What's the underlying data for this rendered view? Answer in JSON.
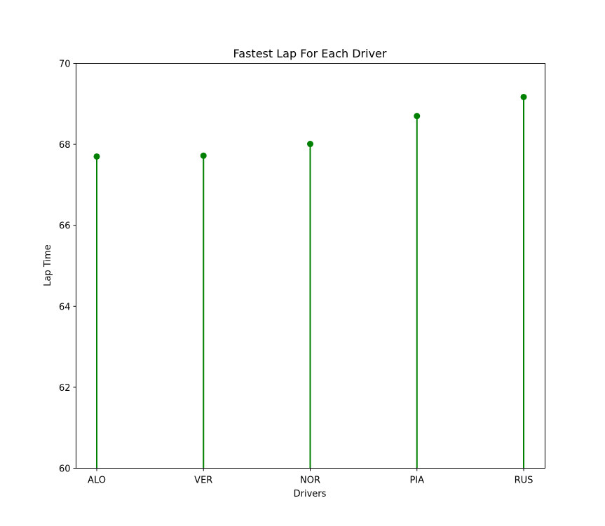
{
  "chart_data": {
    "type": "stem",
    "title": "Fastest Lap For Each Driver",
    "xlabel": "Drivers",
    "ylabel": "Lap Time",
    "categories": [
      "ALO",
      "VER",
      "NOR",
      "PIA",
      "RUS"
    ],
    "values": [
      67.7,
      67.72,
      68.01,
      68.7,
      69.17
    ],
    "ylim": [
      60,
      70
    ],
    "yticks": [
      60,
      62,
      64,
      66,
      68,
      70
    ],
    "grid": false,
    "color": "#008000"
  }
}
